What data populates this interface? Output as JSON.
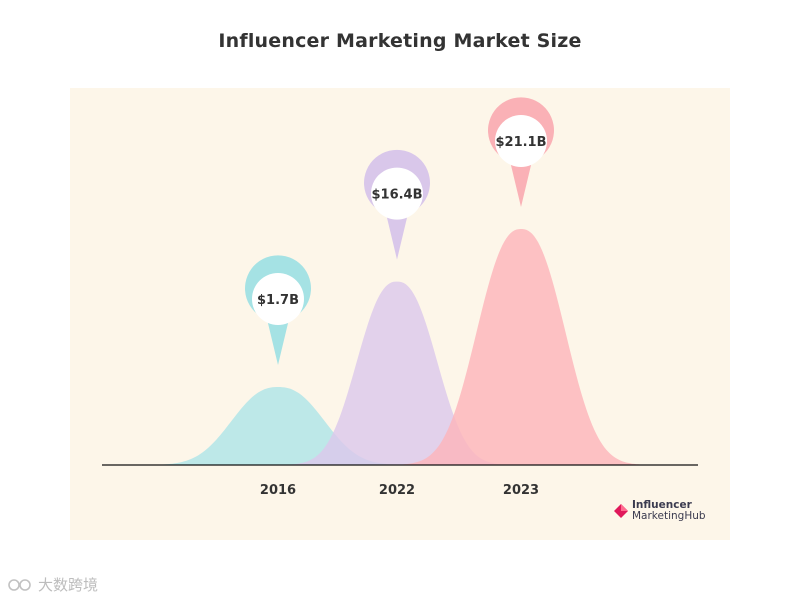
{
  "title": "Influencer Marketing Market Size",
  "chart_data": {
    "type": "area",
    "title": "Influencer Marketing Market Size",
    "categories": [
      "2016",
      "2022",
      "2023"
    ],
    "values": [
      1.7,
      16.4,
      21.1
    ],
    "labels": [
      "$1.7B",
      "$16.4B",
      "$21.1B"
    ],
    "unit": "$B",
    "colors": [
      "#aee4e8",
      "#dcc8ec",
      "#fcb5bb"
    ],
    "pin_colors": [
      "#a5e2e4",
      "#d9c7ea",
      "#fab1b6"
    ],
    "xlabel": "",
    "ylabel": "",
    "grid": false,
    "legend": "none"
  },
  "brand": {
    "line1": "Influencer",
    "line2": "MarketingHub",
    "mark_color": "#e0185a"
  },
  "watermark": {
    "text": "大数跨境"
  }
}
